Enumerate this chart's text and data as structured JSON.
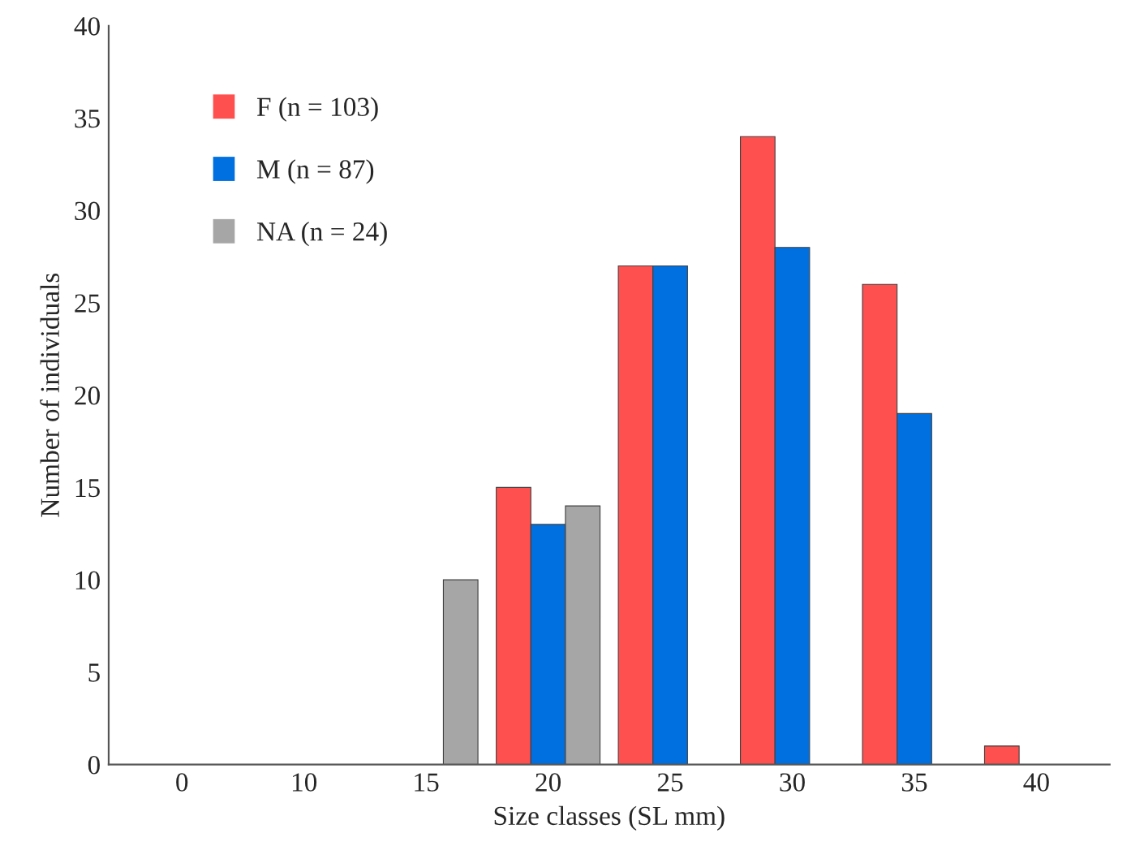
{
  "chart_data": {
    "type": "bar",
    "xlabel": "Size classes (SL mm)",
    "ylabel": "Number of individuals",
    "categories": [
      "0",
      "10",
      "15",
      "20",
      "25",
      "30",
      "35",
      "40"
    ],
    "series": [
      {
        "name": "F (n = 103)",
        "color": "#ff5050",
        "values": [
          0,
          0,
          0,
          15,
          27,
          34,
          26,
          1
        ]
      },
      {
        "name": "M (n = 87)",
        "color": "#0070e0",
        "values": [
          0,
          0,
          0,
          13,
          27,
          28,
          19,
          0
        ]
      },
      {
        "name": "NA (n = 24)",
        "color": "#a6a6a6",
        "values": [
          0,
          0,
          10,
          14,
          0,
          0,
          0,
          0
        ]
      }
    ],
    "ylim": [
      0,
      40
    ],
    "yticks": [
      0,
      5,
      10,
      15,
      20,
      25,
      30,
      35,
      40
    ],
    "grid": false,
    "legend": "top left"
  }
}
